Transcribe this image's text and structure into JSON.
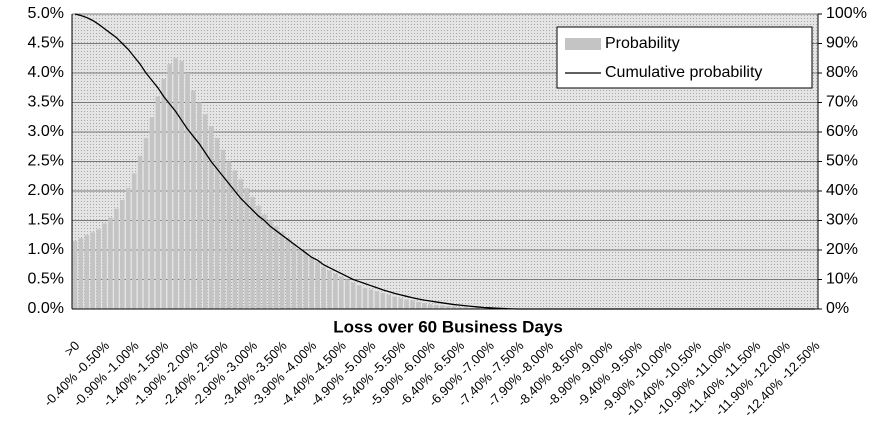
{
  "chart_data": {
    "type": "bar",
    "xlabel": "Loss over 60 Business Days",
    "categories": [
      ">0",
      null,
      null,
      null,
      null,
      "-0.40% -0.50%",
      null,
      null,
      null,
      null,
      "-0.90% -1.00%",
      null,
      null,
      null,
      null,
      "-1.40% -1.50%",
      null,
      null,
      null,
      null,
      "-1.90% -2.00%",
      null,
      null,
      null,
      null,
      "-2.40% -2.50%",
      null,
      null,
      null,
      null,
      "-2.90% -3.00%",
      null,
      null,
      null,
      null,
      "-3.40% -3.50%",
      null,
      null,
      null,
      null,
      "-3.90% -4.00%",
      null,
      null,
      null,
      null,
      "-4.40% -4.50%",
      null,
      null,
      null,
      null,
      "-4.90% -5.00%",
      null,
      null,
      null,
      null,
      "-5.40% -5.50%",
      null,
      null,
      null,
      null,
      "-5.90% -6.00%",
      null,
      null,
      null,
      null,
      "-6.40% -6.50%",
      null,
      null,
      null,
      null,
      "-6.90% -7.00%",
      null,
      null,
      null,
      null,
      "-7.40% -7.50%",
      null,
      null,
      null,
      null,
      "-7.90% -8.00%",
      null,
      null,
      null,
      null,
      "-8.40% -8.50%",
      null,
      null,
      null,
      null,
      "-8.90% -9.00%",
      null,
      null,
      null,
      null,
      "-9.40% -9.50%",
      null,
      null,
      null,
      null,
      "-9.90% -10.00%",
      null,
      null,
      null,
      null,
      "-10.40% -10.50%",
      null,
      null,
      null,
      null,
      "-10.90% -11.00%",
      null,
      null,
      null,
      null,
      "-11.40% -11.50%",
      null,
      null,
      null,
      null,
      "-11.90% -12.00%",
      null,
      null,
      null,
      null,
      "-12.40% -12.50%"
    ],
    "series": [
      {
        "name": "Probability",
        "color": "#c4c4c4",
        "values": [
          1.15,
          1.2,
          1.25,
          1.3,
          1.35,
          1.45,
          1.55,
          1.7,
          1.85,
          2.05,
          2.3,
          2.6,
          2.9,
          3.25,
          3.6,
          3.9,
          4.15,
          4.25,
          4.2,
          4.0,
          3.7,
          3.5,
          3.3,
          3.1,
          2.9,
          2.7,
          2.5,
          2.35,
          2.2,
          2.05,
          1.9,
          1.75,
          1.6,
          1.5,
          1.4,
          1.3,
          1.2,
          1.1,
          1.0,
          0.95,
          0.88,
          0.8,
          0.72,
          0.65,
          0.6,
          0.55,
          0.5,
          0.45,
          0.4,
          0.36,
          0.33,
          0.3,
          0.27,
          0.24,
          0.21,
          0.18,
          0.16,
          0.14,
          0.12,
          0.1,
          0.08,
          0.07,
          0.06,
          0.05,
          0.04,
          0.03,
          0.03,
          0.02,
          0.02,
          0.01,
          0.01,
          0,
          0,
          0,
          0,
          0,
          0,
          0,
          0,
          0,
          0,
          0,
          0,
          0,
          0,
          0,
          0,
          0,
          0,
          0,
          0,
          0,
          0,
          0,
          0,
          0,
          0,
          0,
          0,
          0,
          0,
          0,
          0,
          0,
          0,
          0,
          0,
          0,
          0,
          0,
          0,
          0,
          0,
          0,
          0,
          0,
          0,
          0,
          0,
          0,
          0,
          0,
          0,
          0,
          0,
          0
        ]
      },
      {
        "name": "Cumulative probability",
        "color": "#000000",
        "axis": "y2",
        "values": [
          100,
          99.5,
          98.8,
          97.8,
          96.5,
          95,
          93.5,
          92,
          90,
          88,
          85.5,
          83,
          80,
          77.5,
          75,
          72,
          69.5,
          67,
          64,
          61,
          58.5,
          56,
          53,
          50,
          47.5,
          45,
          42.5,
          40,
          37.5,
          35.5,
          33.5,
          31.5,
          30,
          28,
          26.5,
          25,
          23.5,
          22,
          20.5,
          19,
          17.5,
          16.5,
          15,
          14,
          13,
          12,
          11,
          10,
          9.3,
          8.6,
          7.9,
          7.2,
          6.5,
          5.9,
          5.3,
          4.8,
          4.3,
          3.8,
          3.4,
          3,
          2.7,
          2.4,
          2.1,
          1.8,
          1.5,
          1.3,
          1.1,
          0.9,
          0.7,
          0.5,
          0.4,
          0.3,
          0.2,
          0.1,
          0.05,
          0,
          0,
          0,
          0,
          0,
          0,
          0,
          0,
          0,
          0,
          0,
          0,
          0,
          0,
          0,
          0,
          0,
          0,
          0,
          0,
          0,
          0,
          0,
          0,
          0,
          0,
          0,
          0,
          0,
          0,
          0,
          0,
          0,
          0,
          0,
          0,
          0,
          0,
          0,
          0,
          0,
          0,
          0,
          0,
          0,
          0,
          0,
          0,
          0,
          0,
          0
        ]
      }
    ],
    "ylim": [
      0,
      5
    ],
    "yticks": [
      {
        "value": 0,
        "label": "0.0%"
      },
      {
        "value": 0.5,
        "label": "0.5%"
      },
      {
        "value": 1,
        "label": "1.0%"
      },
      {
        "value": 1.5,
        "label": "1.5%"
      },
      {
        "value": 2,
        "label": "2.0%"
      },
      {
        "value": 2.5,
        "label": "2.5%"
      },
      {
        "value": 3,
        "label": "3.0%"
      },
      {
        "value": 3.5,
        "label": "3.5%"
      },
      {
        "value": 4,
        "label": "4.0%"
      },
      {
        "value": 4.5,
        "label": "4.5%"
      },
      {
        "value": 5,
        "label": "5.0%"
      }
    ],
    "y2lim": [
      0,
      100
    ],
    "y2ticks": [
      {
        "value": 0,
        "label": "0%"
      },
      {
        "value": 10,
        "label": "10%"
      },
      {
        "value": 20,
        "label": "20%"
      },
      {
        "value": 30,
        "label": "30%"
      },
      {
        "value": 40,
        "label": "40%"
      },
      {
        "value": 50,
        "label": "50%"
      },
      {
        "value": 60,
        "label": "60%"
      },
      {
        "value": 70,
        "label": "70%"
      },
      {
        "value": 80,
        "label": "80%"
      },
      {
        "value": 90,
        "label": "90%"
      },
      {
        "value": 100,
        "label": "100%"
      }
    ],
    "grid": true,
    "legend": "upper right"
  }
}
